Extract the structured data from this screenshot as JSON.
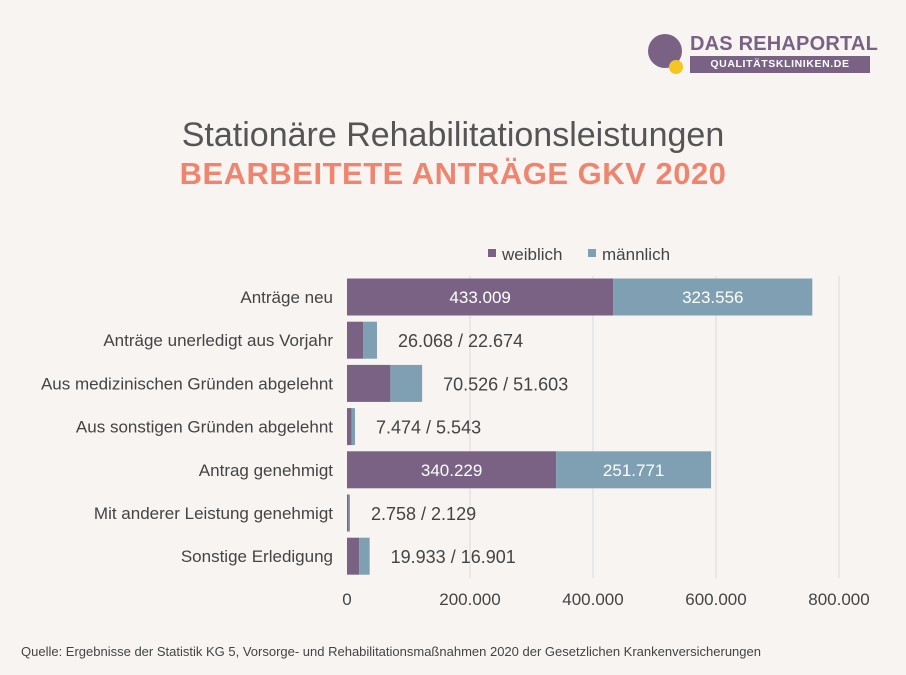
{
  "logo": {
    "title": "DAS REHAPORTAL",
    "subtitle": "QUALITÄTSKLINIKEN.DE"
  },
  "title": "Stationäre Rehabilitationsleistungen",
  "subtitle": "BEARBEITETE ANTRÄGE GKV 2020",
  "source": "Quelle: Ergebnisse der Statistik KG 5, Vorsorge- und Rehabilitationsmaßnahmen 2020 der Gesetzlichen Krankenversicherungen",
  "colors": {
    "weiblich": "#7a6285",
    "maennlich": "#7f9fb3",
    "grid": "#dddddd",
    "text": "#444444",
    "inside_label": "#ffffff"
  },
  "chart_data": {
    "type": "bar",
    "orientation": "horizontal",
    "stacked": true,
    "categories": [
      "Anträge neu",
      "Anträge unerledigt aus Vorjahr",
      "Aus medizinischen Gründen abgelehnt",
      "Aus sonstigen Gründen abgelehnt",
      "Antrag genehmigt",
      "Mit anderer Leistung genehmigt",
      "Sonstige Erledigung"
    ],
    "series": [
      {
        "name": "weiblich",
        "values": [
          433009,
          26068,
          70526,
          7474,
          340229,
          2758,
          19933
        ]
      },
      {
        "name": "männlich",
        "values": [
          323556,
          22674,
          51603,
          5543,
          251771,
          2129,
          16901
        ]
      }
    ],
    "data_labels": [
      {
        "mode": "inside",
        "weiblich": "433.009",
        "maennlich": "323.556"
      },
      {
        "mode": "outside",
        "text": "26.068 / 22.674"
      },
      {
        "mode": "outside",
        "text": "70.526 / 51.603"
      },
      {
        "mode": "outside",
        "text": "7.474 / 5.543"
      },
      {
        "mode": "inside",
        "weiblich": "340.229",
        "maennlich": "251.771"
      },
      {
        "mode": "outside",
        "text": "2.758 / 2.129"
      },
      {
        "mode": "outside",
        "text": "19.933 / 16.901"
      }
    ],
    "x_ticks": [
      0,
      200000,
      400000,
      600000,
      800000
    ],
    "x_tick_labels": [
      "0",
      "200.000",
      "400.000",
      "600.000",
      "800.000"
    ],
    "xlim": [
      0,
      800000
    ],
    "grid": true,
    "legend_position": "top"
  }
}
